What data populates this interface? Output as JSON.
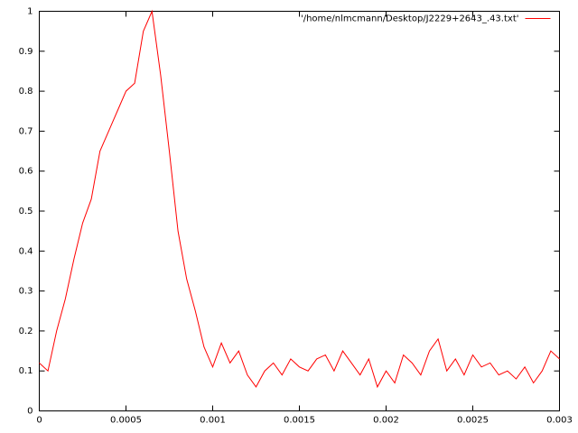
{
  "chart_data": {
    "type": "line",
    "x": [
      0,
      5e-05,
      0.0001,
      0.00015,
      0.0002,
      0.00025,
      0.0003,
      0.00035,
      0.0004,
      0.00045,
      0.0005,
      0.00055,
      0.0006,
      0.00065,
      0.0007,
      0.00075,
      0.0008,
      0.00085,
      0.0009,
      0.00095,
      0.001,
      0.00105,
      0.0011,
      0.00115,
      0.0012,
      0.00125,
      0.0013,
      0.00135,
      0.0014,
      0.00145,
      0.0015,
      0.00155,
      0.0016,
      0.00165,
      0.0017,
      0.00175,
      0.0018,
      0.00185,
      0.0019,
      0.00195,
      0.002,
      0.00205,
      0.0021,
      0.00215,
      0.0022,
      0.00225,
      0.0023,
      0.00235,
      0.0024,
      0.00245,
      0.0025,
      0.00255,
      0.0026,
      0.00265,
      0.0027,
      0.00275,
      0.0028,
      0.00285,
      0.0029,
      0.00295,
      0.003
    ],
    "series": [
      {
        "name": "'/home/nlmcmann/Desktop/J2229+2643_.43.txt'",
        "color": "#ff0000",
        "values": [
          0.12,
          0.1,
          0.2,
          0.28,
          0.38,
          0.47,
          0.53,
          0.65,
          0.7,
          0.75,
          0.8,
          0.82,
          0.95,
          1.0,
          0.84,
          0.65,
          0.45,
          0.33,
          0.25,
          0.16,
          0.11,
          0.17,
          0.12,
          0.15,
          0.09,
          0.06,
          0.1,
          0.12,
          0.09,
          0.13,
          0.11,
          0.1,
          0.13,
          0.14,
          0.1,
          0.15,
          0.12,
          0.09,
          0.13,
          0.06,
          0.1,
          0.07,
          0.14,
          0.12,
          0.09,
          0.15,
          0.18,
          0.1,
          0.13,
          0.09,
          0.14,
          0.11,
          0.12,
          0.09,
          0.1,
          0.08,
          0.11,
          0.07,
          0.1,
          0.15,
          0.13
        ]
      }
    ],
    "xlim": [
      0,
      0.003
    ],
    "xticks": [
      0,
      0.0005,
      0.001,
      0.0015,
      0.002,
      0.0025,
      0.003
    ],
    "ylim": [
      0,
      1
    ],
    "yticks": [
      0,
      0.1,
      0.2,
      0.3,
      0.4,
      0.5,
      0.6,
      0.7,
      0.8,
      0.9,
      1
    ],
    "legend": "top-right"
  }
}
